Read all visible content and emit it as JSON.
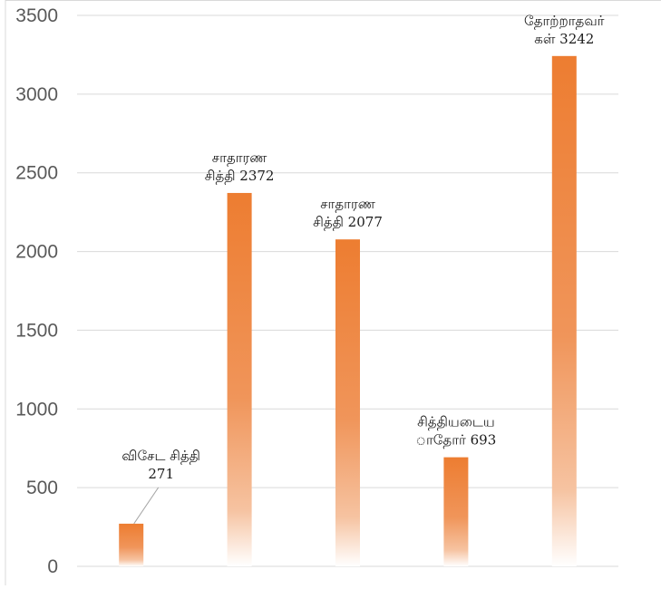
{
  "chart_data": {
    "type": "bar",
    "categories": [
      "விசேட சித்தி",
      "சாதாரண சித்தி",
      "சாதாரண சித்தி",
      "சித்தியடைய ாதோர்",
      "தோற்றாதவர் கள்"
    ],
    "values": [
      271,
      2372,
      2077,
      693,
      3242
    ],
    "data_labels": [
      [
        "விசேட  சித்தி",
        "271"
      ],
      [
        "சாதாரண",
        "சித்தி  2372"
      ],
      [
        "சாதாரண",
        "சித்தி  2077"
      ],
      [
        "சித்தியடைய",
        "ாதோர்  693"
      ],
      [
        "தோற்றாதவர்",
        "கள்  3242"
      ]
    ],
    "ylim": [
      0,
      3500
    ],
    "yticks": [
      "0",
      "500",
      "1000",
      "1500",
      "2000",
      "2500",
      "3000",
      "3500"
    ],
    "grid": true,
    "legend": "none",
    "bar_color_top": "#ed7d31",
    "bar_color_bottom": "#ffffff",
    "title": "",
    "xlabel": "",
    "ylabel": ""
  }
}
